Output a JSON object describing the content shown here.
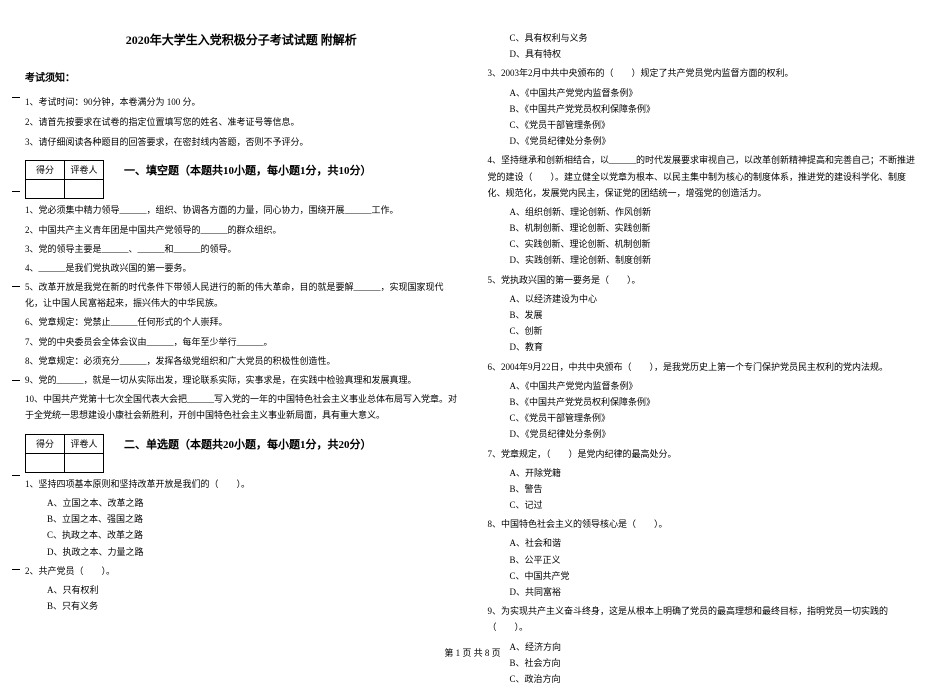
{
  "title": "2020年大学生入党积极分子考试试题 附解析",
  "notice_head": "考试须知：",
  "instructions": [
    "1、考试时间：90分钟，本卷满分为 100 分。",
    "2、请首先按要求在试卷的指定位置填写您的姓名、准考证号等信息。",
    "3、请仔细阅读各种题目的回答要求，在密封线内答题，否则不予评分。"
  ],
  "score_labels": {
    "score": "得分",
    "judge": "评卷人"
  },
  "part1_title": "一、填空题（本题共10小题，每小题1分，共10分）",
  "part1_items": [
    "1、党必须集中精力领导______，组织、协调各方面的力量，同心协力，围绕开展______工作。",
    "2、中国共产主义青年团是中国共产党领导的______的群众组织。",
    "3、党的领导主要是______、______和______的领导。",
    "4、______是我们党执政兴国的第一要务。",
    "5、改革开放是我党在新的时代条件下带领人民进行的新的伟大革命，目的就是要解______，实现国家现代化，让中国人民富裕起来，振兴伟大的中华民族。",
    "6、党章规定：党禁止______任何形式的个人崇拜。",
    "7、党的中央委员会全体会议由______，每年至少举行______。",
    "8、党章规定：必须充分______，发挥各级党组织和广大党员的积极性创造性。",
    "9、党的______，就是一切从实际出发，理论联系实际，实事求是，在实践中检验真理和发展真理。",
    "10、中国共产党第十七次全国代表大会把______写入党的一年的中国特色社会主义事业总体布局写入党章。对于全党统一思想建设小康社会新胜利，开创中国特色社会主义事业新局面，具有重大意义。"
  ],
  "part2_title": "二、单选题（本题共20小题，每小题1分，共20分）",
  "q1": {
    "stem": "1、坚持四项基本原则和坚持改革开放是我们的（　　）。",
    "opts": [
      "A、立国之本、改革之路",
      "B、立国之本、强国之路",
      "C、执政之本、改革之路",
      "D、执政之本、力量之路"
    ]
  },
  "q2": {
    "stem": "2、共产党员（　　）。",
    "opts": [
      "A、只有权利",
      "B、只有义务",
      "C、具有权利与义务",
      "D、具有特权"
    ]
  },
  "q3": {
    "stem": "3、2003年2月中共中央颁布的（　　）规定了共产党员党内监督方面的权利。",
    "opts": [
      "A、《中国共产党党内监督条例》",
      "B、《中国共产党党员权利保障条例》",
      "C、《党员干部管理条例》",
      "D、《党员纪律处分条例》"
    ]
  },
  "q4": {
    "stem": "4、坚持继承和创新相结合，以______的时代发展要求审视自己，以改革创新精神提高和完善自己；不断推进党的建设（　　）。建立健全以党章为根本、以民主集中制为核心的制度体系，推进党的建设科学化、制度化、规范化，发展党内民主，保证党的团结统一，增强党的创造活力。",
    "opts": [
      "A、组织创新、理论创新、作风创新",
      "B、机制创新、理论创新、实践创新",
      "C、实践创新、理论创新、机制创新",
      "D、实践创新、理论创新、制度创新"
    ]
  },
  "q5": {
    "stem": "5、党执政兴国的第一要务是（　　）。",
    "opts": [
      "A、以经济建设为中心",
      "B、发展",
      "C、创新",
      "D、教育"
    ]
  },
  "q6": {
    "stem": "6、2004年9月22日，中共中央颁布（　　），是我党历史上第一个专门保护党员民主权利的党内法规。",
    "opts": [
      "A、《中国共产党党内监督条例》",
      "B、《中国共产党党员权利保障条例》",
      "C、《党员干部管理条例》",
      "D、《党员纪律处分条例》"
    ]
  },
  "q7": {
    "stem": "7、党章规定，（　　）是党内纪律的最高处分。",
    "opts": [
      "A、开除党籍",
      "B、警告",
      "C、记过"
    ]
  },
  "q8": {
    "stem": "8、中国特色社会主义的领导核心是（　　）。",
    "opts": [
      "A、社会和谐",
      "B、公平正义",
      "C、中国共产党",
      "D、共同富裕"
    ]
  },
  "q9": {
    "stem": "9、为实现共产主义奋斗终身，这是从根本上明确了党员的最高理想和最终目标，指明党员一切实践的（　　）。",
    "opts": [
      "A、经济方向",
      "B、社会方向",
      "C、政治方向"
    ]
  },
  "footer": "第 1 页 共 8 页"
}
